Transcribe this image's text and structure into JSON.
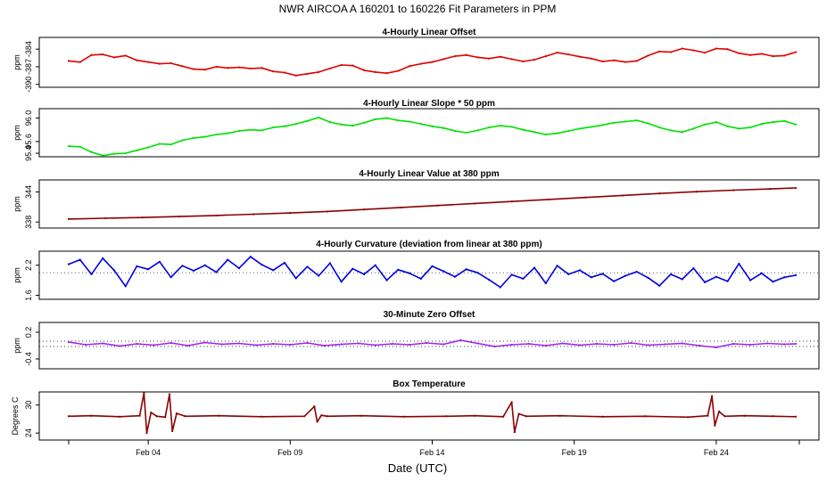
{
  "title": "NWR   AIRCOA A   160201 to 160226   Fit Parameters in PPM",
  "xlabel": "Date (UTC)",
  "x_ticks": [
    "Feb 04",
    "Feb 09",
    "Feb 14",
    "Feb 19",
    "Feb 24"
  ],
  "chart_data": [
    {
      "type": "line",
      "title": "4-Hourly Linear Offset",
      "ylabel": "ppm",
      "color": "#e00000",
      "ylim": [
        -390.5,
        -382
      ],
      "y_ticks": [
        "-384",
        "-387",
        "-390"
      ],
      "y_tick_values": [
        -384,
        -387,
        -390
      ],
      "x_range_days": [
        1.2,
        26.8
      ],
      "series": [
        {
          "name": "offset",
          "x": [
            1.2,
            1.6,
            2.0,
            2.4,
            2.8,
            3.2,
            3.6,
            4.0,
            4.4,
            4.8,
            5.2,
            5.6,
            6.0,
            6.4,
            6.8,
            7.2,
            7.6,
            8.0,
            8.4,
            8.8,
            9.2,
            9.6,
            10.0,
            10.4,
            10.8,
            11.2,
            11.6,
            12.0,
            12.4,
            12.8,
            13.2,
            13.6,
            14.0,
            14.4,
            14.8,
            15.2,
            15.6,
            16.0,
            16.4,
            16.8,
            17.2,
            17.6,
            18.0,
            18.4,
            18.8,
            19.2,
            19.6,
            20.0,
            20.4,
            20.8,
            21.2,
            21.6,
            22.0,
            22.4,
            22.8,
            23.2,
            23.6,
            24.0,
            24.4,
            24.8,
            25.2,
            25.6,
            26.0,
            26.4,
            26.8
          ],
          "values": [
            -386.0,
            -386.2,
            -385.0,
            -384.9,
            -385.4,
            -385.1,
            -385.9,
            -386.2,
            -386.5,
            -386.4,
            -386.9,
            -387.4,
            -387.5,
            -387.0,
            -387.2,
            -387.1,
            -387.3,
            -387.2,
            -387.8,
            -388.0,
            -388.5,
            -388.2,
            -387.9,
            -387.3,
            -386.7,
            -386.8,
            -387.6,
            -387.9,
            -388.1,
            -387.7,
            -386.9,
            -386.5,
            -386.2,
            -385.7,
            -385.2,
            -385.0,
            -385.4,
            -385.6,
            -385.3,
            -385.7,
            -386.1,
            -385.8,
            -385.2,
            -384.6,
            -384.9,
            -385.3,
            -385.6,
            -386.1,
            -385.9,
            -386.2,
            -386.0,
            -385.1,
            -384.4,
            -384.5,
            -383.9,
            -384.2,
            -384.6,
            -383.9,
            -384.0,
            -384.7,
            -385.0,
            -384.8,
            -385.2,
            -385.1,
            -384.5
          ]
        }
      ]
    },
    {
      "type": "line",
      "title": "4-Hourly Linear Slope * 50 ppm",
      "ylabel": "ppm",
      "color": "#00e000",
      "ylim": [
        95.34,
        96.16
      ],
      "y_ticks": [
        "96.0",
        "95.6",
        "95.4"
      ],
      "y_tick_values": [
        96.0,
        95.6,
        95.4
      ],
      "x_range_days": [
        1.2,
        26.8
      ],
      "series": [
        {
          "name": "slope",
          "x": [
            1.2,
            1.6,
            2.0,
            2.4,
            2.8,
            3.2,
            3.6,
            4.0,
            4.4,
            4.8,
            5.2,
            5.6,
            6.0,
            6.4,
            6.8,
            7.2,
            7.6,
            8.0,
            8.4,
            8.8,
            9.2,
            9.6,
            10.0,
            10.4,
            10.8,
            11.2,
            11.6,
            12.0,
            12.4,
            12.8,
            13.2,
            13.6,
            14.0,
            14.4,
            14.8,
            15.2,
            15.6,
            16.0,
            16.4,
            16.8,
            17.2,
            17.6,
            18.0,
            18.4,
            18.8,
            19.2,
            19.6,
            20.0,
            20.4,
            20.8,
            21.2,
            21.6,
            22.0,
            22.4,
            22.8,
            23.2,
            23.6,
            24.0,
            24.4,
            24.8,
            25.2,
            25.6,
            26.0,
            26.4,
            26.8
          ],
          "values": [
            95.52,
            95.51,
            95.42,
            95.36,
            95.39,
            95.4,
            95.45,
            95.5,
            95.56,
            95.55,
            95.62,
            95.66,
            95.68,
            95.72,
            95.74,
            95.78,
            95.8,
            95.79,
            95.84,
            95.86,
            95.9,
            95.95,
            96.01,
            95.93,
            95.89,
            95.87,
            95.92,
            95.98,
            96.0,
            95.96,
            95.94,
            95.9,
            95.86,
            95.83,
            95.78,
            95.75,
            95.79,
            95.84,
            95.87,
            95.85,
            95.8,
            95.76,
            95.72,
            95.74,
            95.78,
            95.82,
            95.85,
            95.88,
            95.92,
            95.94,
            95.96,
            95.91,
            95.84,
            95.79,
            95.76,
            95.82,
            95.89,
            95.93,
            95.86,
            95.82,
            95.84,
            95.9,
            95.93,
            95.95,
            95.89
          ]
        }
      ]
    },
    {
      "type": "line",
      "title": "4-Hourly Linear Value at 380 ppm",
      "ylabel": "ppm",
      "color": "#8b0000",
      "ylim": [
        336.8,
        346.4
      ],
      "y_ticks": [
        "344",
        "338"
      ],
      "y_tick_values": [
        344,
        338
      ],
      "x_range_days": [
        1.2,
        26.8
      ],
      "series": [
        {
          "name": "value380",
          "x": [
            1.2,
            2.5,
            3.8,
            5.1,
            6.4,
            7.7,
            9.0,
            10.3,
            11.6,
            12.9,
            14.2,
            15.5,
            16.8,
            18.1,
            19.4,
            20.7,
            22.0,
            23.3,
            24.6,
            25.9,
            26.8
          ],
          "values": [
            338.6,
            338.75,
            338.9,
            339.1,
            339.3,
            339.55,
            339.8,
            340.1,
            340.5,
            340.9,
            341.3,
            341.7,
            342.1,
            342.5,
            342.9,
            343.3,
            343.7,
            344.05,
            344.35,
            344.6,
            344.8
          ]
        }
      ]
    },
    {
      "type": "line",
      "title": "4-Hourly Curvature (deviation from linear at 380 ppm)",
      "ylabel": "ppm",
      "color": "#0000e0",
      "ylim": [
        1.52,
        2.48
      ],
      "y_ticks": [
        "2.2",
        "1.6"
      ],
      "y_tick_values": [
        2.2,
        1.6
      ],
      "reference_line": 2.05,
      "x_range_days": [
        1.2,
        26.8
      ],
      "series": [
        {
          "name": "curvature",
          "x": [
            1.2,
            1.6,
            2.0,
            2.4,
            2.8,
            3.2,
            3.6,
            4.0,
            4.4,
            4.8,
            5.2,
            5.6,
            6.0,
            6.4,
            6.8,
            7.2,
            7.6,
            8.0,
            8.4,
            8.8,
            9.2,
            9.6,
            10.0,
            10.4,
            10.8,
            11.2,
            11.6,
            12.0,
            12.4,
            12.8,
            13.2,
            13.6,
            14.0,
            14.4,
            14.8,
            15.2,
            15.6,
            16.0,
            16.4,
            16.8,
            17.2,
            17.6,
            18.0,
            18.4,
            18.8,
            19.2,
            19.6,
            20.0,
            20.4,
            20.8,
            21.2,
            21.6,
            22.0,
            22.4,
            22.8,
            23.2,
            23.6,
            24.0,
            24.4,
            24.8,
            25.2,
            25.6,
            26.0,
            26.4,
            26.8
          ],
          "values": [
            2.22,
            2.31,
            2.02,
            2.34,
            2.1,
            1.78,
            2.18,
            2.12,
            2.27,
            1.96,
            2.19,
            2.09,
            2.2,
            2.06,
            2.31,
            2.14,
            2.37,
            2.21,
            2.1,
            2.25,
            1.94,
            2.17,
            1.99,
            2.24,
            1.87,
            2.13,
            2.02,
            2.2,
            1.9,
            2.11,
            2.04,
            1.93,
            2.18,
            2.08,
            1.97,
            2.12,
            2.05,
            1.91,
            1.76,
            2.01,
            1.93,
            2.15,
            1.84,
            2.19,
            2.02,
            2.1,
            1.96,
            2.03,
            1.88,
            1.99,
            2.07,
            1.95,
            1.79,
            2.02,
            1.92,
            2.14,
            1.86,
            1.97,
            1.88,
            2.23,
            1.9,
            2.04,
            1.87,
            1.96,
            2.0
          ]
        }
      ]
    },
    {
      "type": "line",
      "title": "30-Minute Zero Offset",
      "ylabel": "ppm",
      "color": "#a020f0",
      "ylim": [
        -0.62,
        0.42
      ],
      "y_ticks": [
        "0.2",
        "-0.4"
      ],
      "y_tick_values": [
        0.2,
        -0.4
      ],
      "reference_lines": [
        0.0,
        -0.12
      ],
      "x_range_days": [
        1.2,
        26.8
      ],
      "series": [
        {
          "name": "zero_offset",
          "x": [
            1.2,
            1.8,
            2.4,
            3.0,
            3.6,
            4.2,
            4.8,
            5.4,
            6.0,
            6.6,
            7.2,
            7.8,
            8.4,
            9.0,
            9.6,
            10.2,
            10.8,
            11.4,
            12.0,
            12.6,
            13.2,
            13.8,
            14.4,
            15.0,
            15.6,
            16.2,
            16.8,
            17.4,
            18.0,
            18.6,
            19.2,
            19.8,
            20.4,
            21.0,
            21.6,
            22.2,
            22.8,
            23.4,
            24.0,
            24.6,
            25.2,
            25.8,
            26.4,
            26.8
          ],
          "values": [
            -0.02,
            -0.08,
            -0.05,
            -0.11,
            -0.06,
            -0.09,
            -0.04,
            -0.1,
            -0.03,
            -0.07,
            -0.05,
            -0.09,
            -0.06,
            -0.08,
            -0.04,
            -0.1,
            -0.07,
            -0.05,
            -0.09,
            -0.06,
            -0.08,
            -0.04,
            -0.07,
            0.02,
            -0.05,
            -0.12,
            -0.08,
            -0.06,
            -0.1,
            -0.05,
            -0.09,
            -0.06,
            -0.08,
            -0.04,
            -0.09,
            -0.07,
            -0.05,
            -0.1,
            -0.14,
            -0.06,
            -0.08,
            -0.05,
            -0.07,
            -0.06
          ]
        }
      ]
    },
    {
      "type": "line",
      "title": "Box Temperature",
      "ylabel": "Degrees C",
      "color": "#8b0000",
      "ylim": [
        22.5,
        32.8
      ],
      "y_ticks": [
        "30",
        "24"
      ],
      "y_tick_values": [
        30,
        24
      ],
      "x_range_days": [
        1.2,
        26.8
      ],
      "series": [
        {
          "name": "box_temp",
          "x": [
            1.2,
            2.0,
            3.0,
            3.7,
            3.85,
            3.95,
            4.1,
            4.3,
            4.6,
            4.75,
            4.85,
            5.0,
            5.3,
            6.5,
            8.0,
            9.5,
            9.85,
            9.95,
            10.1,
            10.3,
            11.5,
            13.0,
            14.5,
            15.5,
            16.5,
            16.8,
            16.9,
            17.05,
            17.3,
            18.5,
            20.0,
            21.5,
            23.0,
            23.7,
            23.85,
            23.95,
            24.1,
            24.3,
            25.0,
            26.0,
            26.8
          ],
          "values": [
            27.6,
            27.7,
            27.5,
            27.7,
            32.6,
            24.0,
            28.4,
            27.6,
            27.4,
            32.3,
            24.4,
            28.2,
            27.6,
            27.7,
            27.5,
            27.6,
            29.7,
            26.4,
            27.8,
            27.6,
            27.7,
            27.5,
            27.6,
            27.7,
            27.5,
            30.6,
            24.2,
            28.1,
            27.6,
            27.7,
            27.5,
            27.6,
            27.4,
            27.7,
            31.9,
            25.6,
            28.6,
            27.6,
            27.7,
            27.6,
            27.5
          ]
        }
      ]
    }
  ]
}
